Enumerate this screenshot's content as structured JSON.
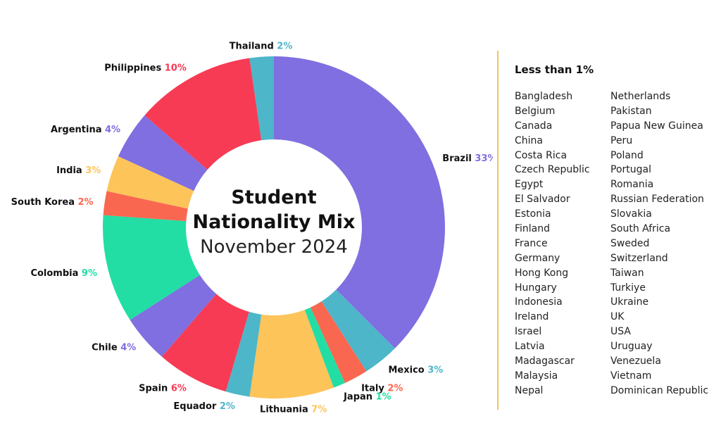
{
  "chart_data": {
    "type": "pie",
    "subtype": "donut",
    "title": "Student Nationality Mix",
    "subtitle": "November 2024",
    "slices": [
      {
        "label": "Brazil",
        "percent_label": "33%",
        "value": 33,
        "color": "#7f6fe0"
      },
      {
        "label": "Mexico",
        "percent_label": "3%",
        "value": 3,
        "color": "#4db6c9"
      },
      {
        "label": "Italy",
        "percent_label": "2%",
        "value": 2,
        "color": "#fa6750"
      },
      {
        "label": "Japan",
        "percent_label": "1%",
        "value": 1,
        "color": "#22dea4"
      },
      {
        "label": "Lithuania",
        "percent_label": "7%",
        "value": 7,
        "color": "#fdc45a"
      },
      {
        "label": "Equador",
        "percent_label": "2%",
        "value": 2,
        "color": "#4db6c9"
      },
      {
        "label": "Spain",
        "percent_label": "6%",
        "value": 6,
        "color": "#f73b55"
      },
      {
        "label": "Chile",
        "percent_label": "4%",
        "value": 4,
        "color": "#7f6fe0"
      },
      {
        "label": "Colombia",
        "percent_label": "9%",
        "value": 9,
        "color": "#22dea4"
      },
      {
        "label": "South Korea",
        "percent_label": "2%",
        "value": 2,
        "color": "#fa6750"
      },
      {
        "label": "India",
        "percent_label": "3%",
        "value": 3,
        "color": "#fdc45a"
      },
      {
        "label": "Argentina",
        "percent_label": "4%",
        "value": 4,
        "color": "#7f6fe0"
      },
      {
        "label": "Philippines",
        "percent_label": "10%",
        "value": 10,
        "color": "#f73b55"
      },
      {
        "label": "Thailand",
        "percent_label": "2%",
        "value": 2,
        "color": "#4db6c9"
      }
    ],
    "legend_placement": "right"
  },
  "sidebar": {
    "title": "Less than 1%",
    "col1": [
      "Bangladesh",
      "Belgium",
      "Canada",
      "China",
      "Costa Rica",
      "Czech Republic",
      "Egypt",
      "El Salvador",
      "Estonia",
      "Finland",
      "France",
      "Germany",
      "Hong Kong",
      "Hungary",
      "Indonesia",
      "Ireland",
      "Israel",
      "Latvia",
      "Madagascar",
      "Malaysia",
      "Nepal"
    ],
    "col2": [
      "Netherlands",
      "Pakistan",
      "Papua New Guinea",
      "Peru",
      "Poland",
      "Portugal",
      "Romania",
      "Russian Federation",
      "Slovakia",
      "South Africa",
      "Sweded",
      "Switzerland",
      "Taiwan",
      "Turkiye",
      "Ukraine",
      "UK",
      "USA",
      "Uruguay",
      "Venezuela",
      "Vietnam",
      "Dominican Republic"
    ]
  },
  "colors": {
    "divider": "#f5c35a"
  }
}
